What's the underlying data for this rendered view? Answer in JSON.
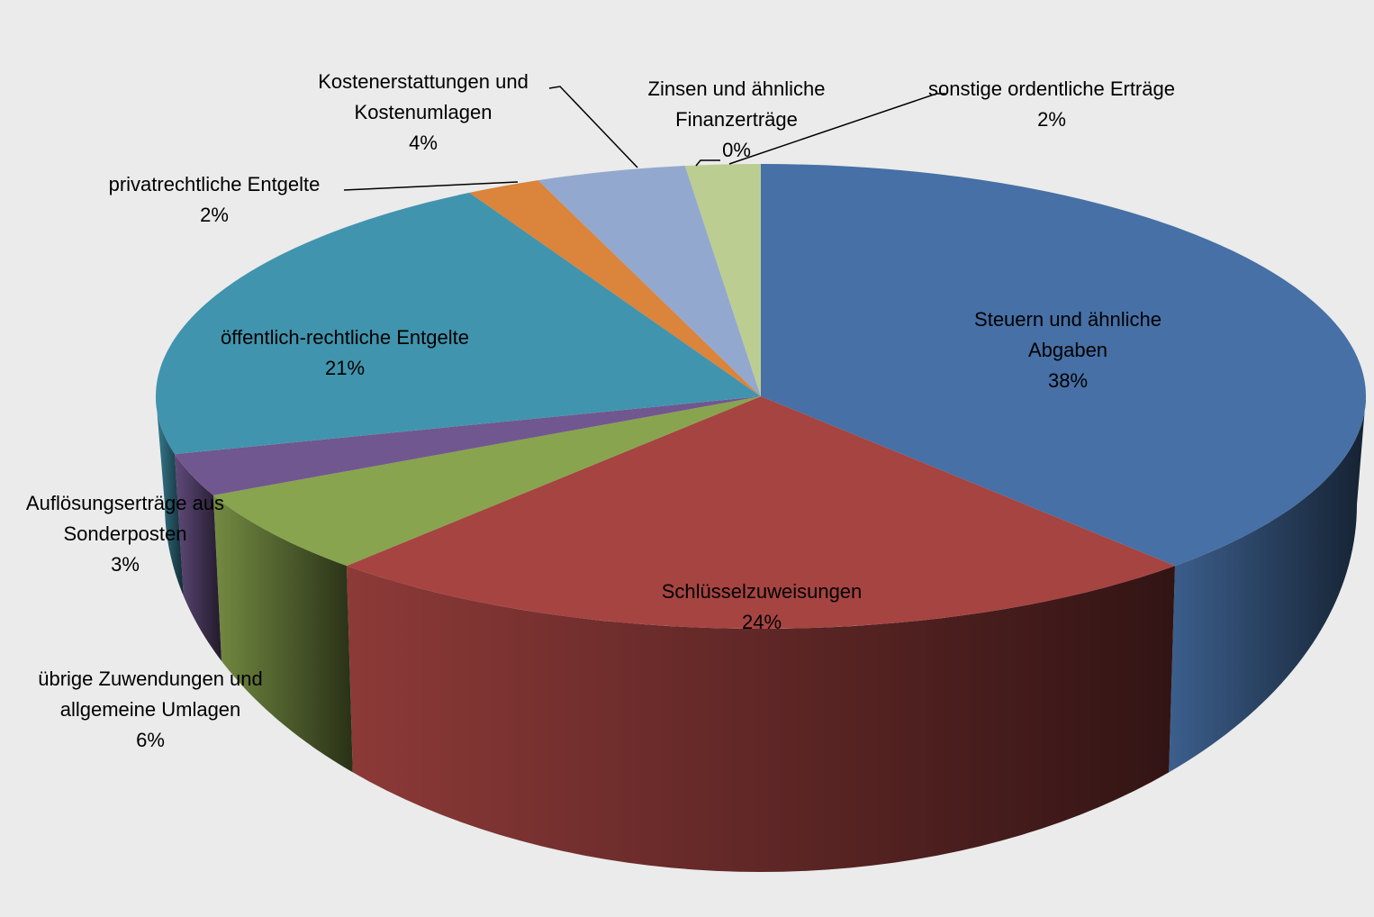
{
  "chart_data": {
    "type": "pie",
    "categories": [
      "Steuern und ähnliche Abgaben",
      "Schlüsselzuweisungen",
      "übrige Zuwendungen und allgemeine Umlagen",
      "Auflösungserträge aus Sonderposten",
      "öffentlich-rechtliche Entgelte",
      "privatrechtliche Entgelte",
      "Kostenerstattungen und Kostenumlagen",
      "Zinsen und ähnliche Finanzerträge",
      "sonstige ordentliche Erträge"
    ],
    "values": [
      38,
      24,
      6,
      3,
      21,
      2,
      4,
      0,
      2
    ],
    "value_labels": [
      "38%",
      "24%",
      "6%",
      "3%",
      "21%",
      "2%",
      "4%",
      "0%",
      "2%"
    ],
    "colors": [
      "#4670a6",
      "#a64442",
      "#88a44e",
      "#71578f",
      "#4194ad",
      "#da843c",
      "#93a8cf",
      "#4bacc6",
      "#bccd92"
    ]
  }
}
